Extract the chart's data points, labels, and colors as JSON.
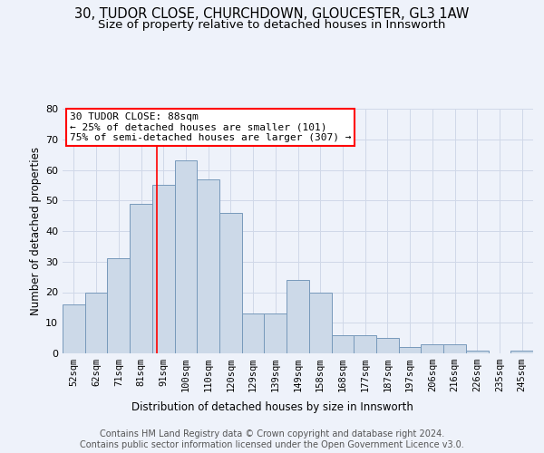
{
  "title_line1": "30, TUDOR CLOSE, CHURCHDOWN, GLOUCESTER, GL3 1AW",
  "title_line2": "Size of property relative to detached houses in Innsworth",
  "xlabel": "Distribution of detached houses by size in Innsworth",
  "ylabel": "Number of detached properties",
  "categories": [
    "52sqm",
    "62sqm",
    "71sqm",
    "81sqm",
    "91sqm",
    "100sqm",
    "110sqm",
    "120sqm",
    "129sqm",
    "139sqm",
    "149sqm",
    "158sqm",
    "168sqm",
    "177sqm",
    "187sqm",
    "197sqm",
    "206sqm",
    "216sqm",
    "226sqm",
    "235sqm",
    "245sqm"
  ],
  "values": [
    16,
    20,
    31,
    49,
    55,
    63,
    57,
    46,
    13,
    13,
    24,
    20,
    6,
    6,
    5,
    2,
    3,
    3,
    1,
    0,
    1
  ],
  "bar_color": "#ccd9e8",
  "bar_edge_color": "#7799bb",
  "vline_x_index": 3.7,
  "annotation_text": "30 TUDOR CLOSE: 88sqm\n← 25% of detached houses are smaller (101)\n75% of semi-detached houses are larger (307) →",
  "ylim": [
    0,
    80
  ],
  "yticks": [
    0,
    10,
    20,
    30,
    40,
    50,
    60,
    70,
    80
  ],
  "footer_line1": "Contains HM Land Registry data © Crown copyright and database right 2024.",
  "footer_line2": "Contains public sector information licensed under the Open Government Licence v3.0.",
  "bg_color": "#eef2fa",
  "plot_bg_color": "#eef2fa",
  "grid_color": "#d0d8e8",
  "title_fontsize": 10.5,
  "subtitle_fontsize": 9.5,
  "ylabel_fontsize": 8.5,
  "xlabel_fontsize": 8.5,
  "annotation_fontsize": 8,
  "tick_fontsize": 7.5,
  "footer_fontsize": 7
}
